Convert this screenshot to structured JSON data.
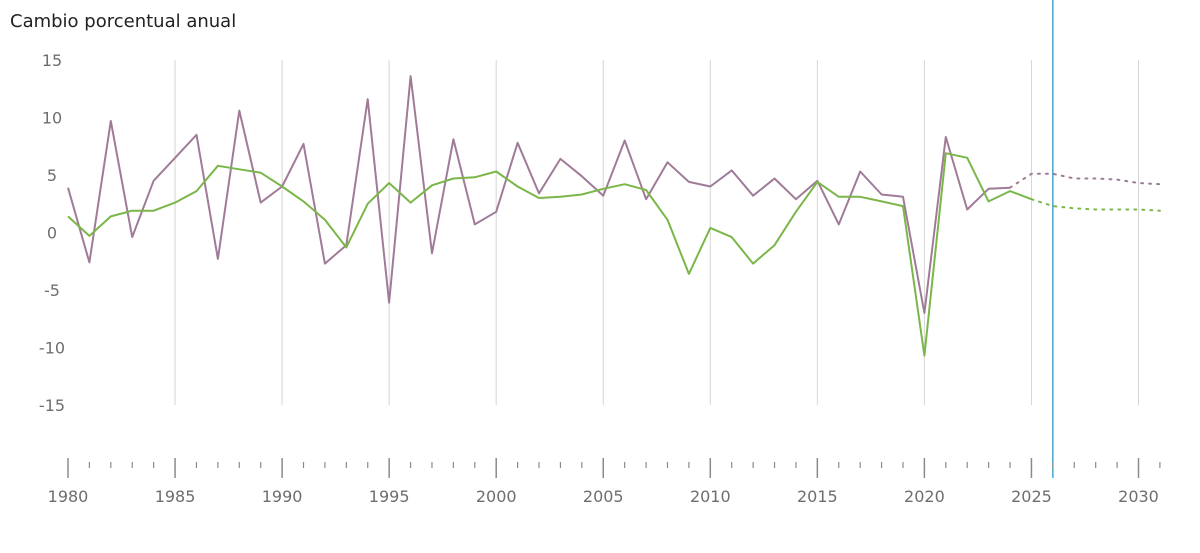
{
  "chart_data": {
    "type": "line",
    "title": "Cambio porcentual anual",
    "xlabel": "",
    "ylabel": "",
    "xlim": [
      1980,
      2031
    ],
    "ylim": [
      -15,
      15
    ],
    "y_ticks": [
      15,
      10,
      5,
      0,
      -5,
      -10,
      -15
    ],
    "x_labeled_ticks": [
      1980,
      1985,
      1990,
      1995,
      2000,
      2005,
      2010,
      2015,
      2020,
      2025,
      2030
    ],
    "x_minor_tick_step": 1,
    "grid": "vertical",
    "current_year_marker": 2026,
    "colors": {
      "series_purple": "#a07b98",
      "series_green": "#7ab648",
      "grid": "#d6d6d6",
      "marker_line": "#2a98c8",
      "tick_text": "#6e6e6e",
      "axis": "#8a8a8a"
    },
    "series": [
      {
        "key": "purple",
        "points": [
          [
            1980,
            3.9
          ],
          [
            1981,
            -2.6
          ],
          [
            1982,
            9.7
          ],
          [
            1983,
            -0.4
          ],
          [
            1984,
            4.5
          ],
          [
            1985,
            6.5
          ],
          [
            1986,
            8.5
          ],
          [
            1987,
            -2.3
          ],
          [
            1988,
            10.6
          ],
          [
            1989,
            2.6
          ],
          [
            1990,
            4.0
          ],
          [
            1991,
            7.7
          ],
          [
            1992,
            -2.7
          ],
          [
            1993,
            -1.1
          ],
          [
            1994,
            11.6
          ],
          [
            1995,
            -6.1
          ],
          [
            1996,
            13.6
          ],
          [
            1997,
            -1.8
          ],
          [
            1998,
            8.1
          ],
          [
            1999,
            0.7
          ],
          [
            2000,
            1.8
          ],
          [
            2001,
            7.8
          ],
          [
            2002,
            3.4
          ],
          [
            2003,
            6.4
          ],
          [
            2004,
            4.9
          ],
          [
            2005,
            3.2
          ],
          [
            2006,
            8.0
          ],
          [
            2007,
            2.9
          ],
          [
            2008,
            6.1
          ],
          [
            2009,
            4.4
          ],
          [
            2010,
            4.0
          ],
          [
            2011,
            5.4
          ],
          [
            2012,
            3.2
          ],
          [
            2013,
            4.7
          ],
          [
            2014,
            2.9
          ],
          [
            2015,
            4.5
          ],
          [
            2016,
            0.7
          ],
          [
            2017,
            5.3
          ],
          [
            2018,
            3.3
          ],
          [
            2019,
            3.1
          ],
          [
            2020,
            -7.0
          ],
          [
            2021,
            8.3
          ],
          [
            2022,
            2.0
          ],
          [
            2023,
            3.8
          ],
          [
            2024,
            3.9
          ]
        ],
        "projection": [
          [
            2024,
            3.9
          ],
          [
            2025,
            5.1
          ],
          [
            2026,
            5.1
          ],
          [
            2027,
            4.7
          ],
          [
            2028,
            4.7
          ],
          [
            2029,
            4.6
          ],
          [
            2030,
            4.3
          ],
          [
            2031,
            4.2
          ]
        ]
      },
      {
        "key": "green",
        "points": [
          [
            1980,
            1.4
          ],
          [
            1981,
            -0.3
          ],
          [
            1982,
            1.4
          ],
          [
            1983,
            1.9
          ],
          [
            1984,
            1.9
          ],
          [
            1985,
            2.6
          ],
          [
            1986,
            3.6
          ],
          [
            1987,
            5.8
          ],
          [
            1988,
            5.5
          ],
          [
            1989,
            5.2
          ],
          [
            1990,
            4.0
          ],
          [
            1991,
            2.7
          ],
          [
            1992,
            1.1
          ],
          [
            1993,
            -1.3
          ],
          [
            1994,
            2.5
          ],
          [
            1995,
            4.3
          ],
          [
            1996,
            2.6
          ],
          [
            1997,
            4.1
          ],
          [
            1998,
            4.7
          ],
          [
            1999,
            4.8
          ],
          [
            2000,
            5.3
          ],
          [
            2001,
            4.0
          ],
          [
            2002,
            3.0
          ],
          [
            2003,
            3.1
          ],
          [
            2004,
            3.3
          ],
          [
            2005,
            3.8
          ],
          [
            2006,
            4.2
          ],
          [
            2007,
            3.7
          ],
          [
            2008,
            1.1
          ],
          [
            2009,
            -3.6
          ],
          [
            2010,
            0.4
          ],
          [
            2011,
            -0.4
          ],
          [
            2012,
            -2.7
          ],
          [
            2013,
            -1.1
          ],
          [
            2014,
            1.8
          ],
          [
            2015,
            4.4
          ],
          [
            2016,
            3.1
          ],
          [
            2017,
            3.1
          ],
          [
            2018,
            2.7
          ],
          [
            2019,
            2.3
          ],
          [
            2020,
            -10.7
          ],
          [
            2021,
            6.9
          ],
          [
            2022,
            6.5
          ],
          [
            2023,
            2.7
          ],
          [
            2024,
            3.6
          ],
          [
            2025,
            2.9
          ]
        ],
        "projection": [
          [
            2025,
            2.9
          ],
          [
            2026,
            2.3
          ],
          [
            2027,
            2.1
          ],
          [
            2028,
            2.0
          ],
          [
            2029,
            2.0
          ],
          [
            2030,
            2.0
          ],
          [
            2031,
            1.9
          ]
        ]
      }
    ]
  }
}
